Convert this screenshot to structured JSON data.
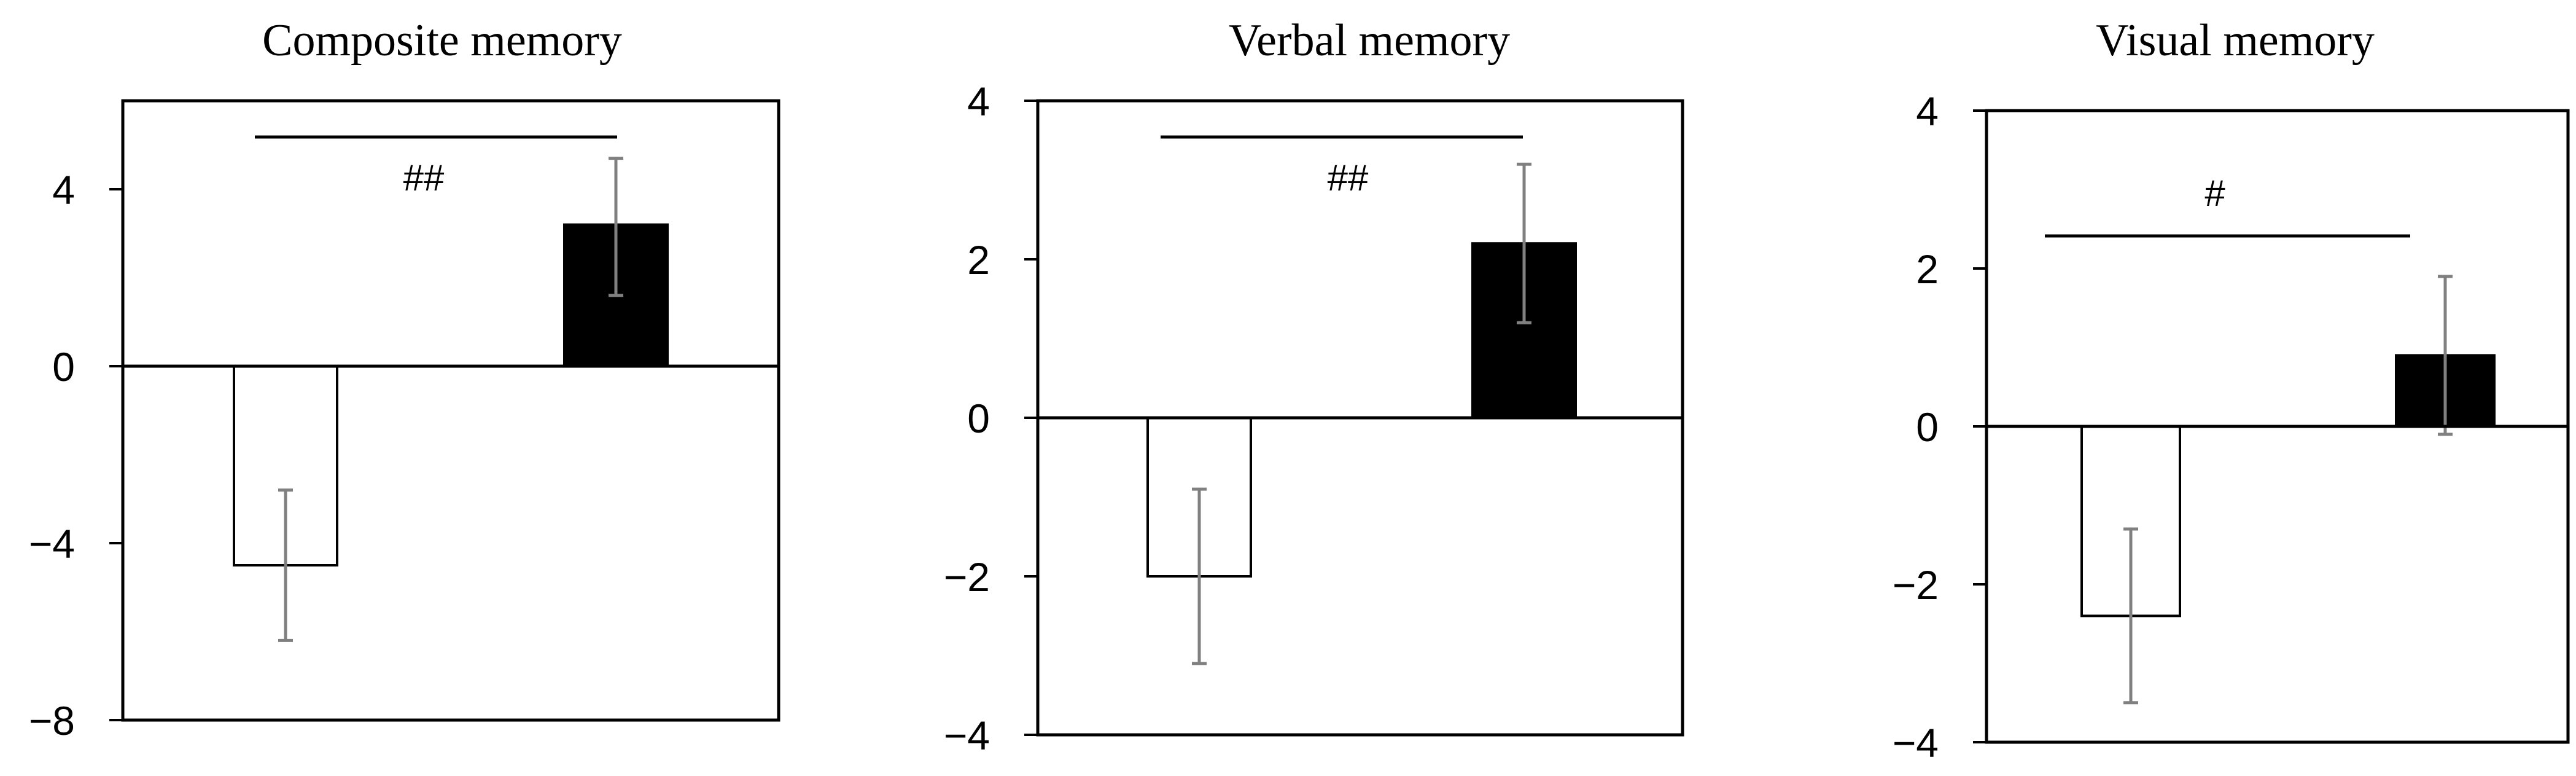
{
  "chart_data": [
    {
      "type": "bar",
      "title": "Composite memory",
      "xlabel": "",
      "ylabel": "",
      "ylim": [
        -8,
        6
      ],
      "yticks": [
        4,
        0,
        -4,
        -8
      ],
      "ytick_labels": [
        "4",
        "0",
        "−4",
        "−8"
      ],
      "grid": false,
      "bars": [
        {
          "value": -4.5,
          "err_low": -6.2,
          "err_high": -2.8,
          "fill": "#ffffff"
        },
        {
          "value": 3.2,
          "err_low": 1.6,
          "err_high": 4.7,
          "fill": "#000000"
        }
      ],
      "annotation": "##"
    },
    {
      "type": "bar",
      "title": "Verbal memory",
      "xlabel": "",
      "ylabel": "",
      "ylim": [
        -4,
        4
      ],
      "yticks": [
        4,
        2,
        0,
        -2,
        -4
      ],
      "ytick_labels": [
        "4",
        "2",
        "0",
        "−2",
        "−4"
      ],
      "grid": false,
      "bars": [
        {
          "value": -2.0,
          "err_low": -3.1,
          "err_high": -0.9,
          "fill": "#ffffff"
        },
        {
          "value": 2.2,
          "err_low": 1.2,
          "err_high": 3.2,
          "fill": "#000000"
        }
      ],
      "annotation": "##"
    },
    {
      "type": "bar",
      "title": "Visual memory",
      "xlabel": "",
      "ylabel": "",
      "ylim": [
        -4,
        4
      ],
      "yticks": [
        4,
        2,
        0,
        -2,
        -4
      ],
      "ytick_labels": [
        "4",
        "2",
        "0",
        "−2",
        "−4"
      ],
      "grid": false,
      "bars": [
        {
          "value": -2.4,
          "err_low": -3.5,
          "err_high": -1.3,
          "fill": "#ffffff"
        },
        {
          "value": 0.9,
          "err_low": -0.1,
          "err_high": 1.9,
          "fill": "#000000"
        }
      ],
      "annotation": "#"
    }
  ],
  "colors": {
    "axis": "#000000",
    "error_bar": "#808080",
    "control_bar": "#ffffff",
    "treatment_bar": "#000000"
  }
}
